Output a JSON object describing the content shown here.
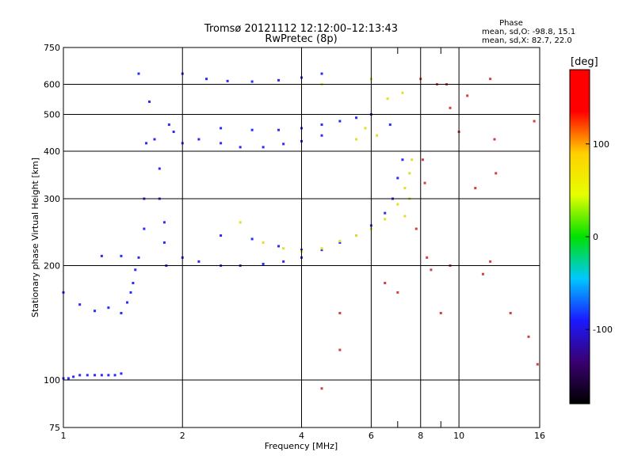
{
  "chart_data": {
    "type": "scatter",
    "title": "Tromsø 20121112 12:12:00–12:13:43",
    "subtitle": "RwPretec (8p)",
    "stats": {
      "heading": "Phase",
      "line_o": "mean, sd,O: -98.8, 15.1",
      "line_x": "mean, sd,X: 82.7, 22.0"
    },
    "xlabel": "Frequency [MHz]",
    "ylabel": "Stationary phase Virtual Height [km]",
    "x_scale": "log",
    "y_scale": "log",
    "xlim": [
      1,
      16
    ],
    "ylim": [
      75,
      750
    ],
    "xticks": [
      1,
      2,
      4,
      6,
      8,
      10,
      16
    ],
    "xticks_minor": [
      7,
      9
    ],
    "yticks": [
      75,
      100,
      200,
      300,
      400,
      500,
      600,
      750
    ],
    "grid": true,
    "colorbar": {
      "label": "[deg]",
      "range": [
        -180,
        180
      ],
      "ticks": [
        100,
        0,
        -100
      ],
      "colormap": [
        "#000000",
        "#3a0070",
        "#1a1aff",
        "#00c8ff",
        "#00e000",
        "#e6ff00",
        "#ffd000",
        "#ff0000",
        "#ff0000"
      ]
    },
    "series": [
      {
        "points": [
          [
            1.0,
            101
          ],
          [
            1.03,
            101
          ],
          [
            1.06,
            102
          ],
          [
            1.1,
            103
          ],
          [
            1.15,
            103
          ],
          [
            1.2,
            103
          ],
          [
            1.25,
            103
          ],
          [
            1.3,
            103
          ],
          [
            1.35,
            103
          ],
          [
            1.4,
            104
          ],
          [
            1.0,
            170
          ],
          [
            1.1,
            158
          ],
          [
            1.2,
            152
          ],
          [
            1.3,
            155
          ],
          [
            1.4,
            150
          ],
          [
            1.45,
            160
          ],
          [
            1.48,
            170
          ],
          [
            1.5,
            180
          ],
          [
            1.52,
            195
          ],
          [
            1.25,
            212
          ],
          [
            1.4,
            212
          ],
          [
            1.55,
            210
          ],
          [
            1.6,
            250
          ],
          [
            1.6,
            300
          ],
          [
            1.62,
            420
          ],
          [
            1.55,
            640
          ],
          [
            1.65,
            540
          ],
          [
            1.7,
            430
          ],
          [
            1.75,
            360
          ],
          [
            1.75,
            300
          ],
          [
            1.8,
            260
          ],
          [
            1.8,
            230
          ],
          [
            1.82,
            200
          ],
          [
            1.85,
            470
          ],
          [
            1.9,
            450
          ],
          [
            2.0,
            420
          ],
          [
            2.0,
            210
          ],
          [
            2.2,
            205
          ],
          [
            2.5,
            200
          ],
          [
            2.8,
            200
          ],
          [
            3.2,
            202
          ],
          [
            3.6,
            205
          ],
          [
            4.0,
            210
          ],
          [
            4.5,
            220
          ],
          [
            5.0,
            230
          ],
          [
            5.5,
            240
          ],
          [
            6.0,
            255
          ],
          [
            6.5,
            275
          ],
          [
            6.8,
            300
          ],
          [
            7.0,
            340
          ],
          [
            7.2,
            380
          ],
          [
            6.7,
            470
          ],
          [
            2.2,
            430
          ],
          [
            2.5,
            420
          ],
          [
            2.8,
            410
          ],
          [
            3.2,
            410
          ],
          [
            3.6,
            418
          ],
          [
            4.0,
            425
          ],
          [
            4.5,
            440
          ],
          [
            2.5,
            460
          ],
          [
            3.0,
            455
          ],
          [
            3.5,
            455
          ],
          [
            4.0,
            460
          ],
          [
            4.5,
            470
          ],
          [
            5.0,
            480
          ],
          [
            5.5,
            490
          ],
          [
            6.0,
            500
          ],
          [
            2.0,
            640
          ],
          [
            2.3,
            620
          ],
          [
            2.6,
            612
          ],
          [
            3.0,
            610
          ],
          [
            3.5,
            615
          ],
          [
            4.0,
            625
          ],
          [
            4.5,
            640
          ],
          [
            2.5,
            240
          ],
          [
            3.0,
            235
          ],
          [
            3.5,
            225
          ],
          [
            4.0,
            220
          ]
        ]
      },
      {
        "points": [
          [
            3.2,
            230
          ],
          [
            3.6,
            222
          ],
          [
            4.0,
            218
          ],
          [
            4.5,
            222
          ],
          [
            5.0,
            232
          ],
          [
            5.5,
            240
          ],
          [
            6.0,
            250
          ],
          [
            6.5,
            265
          ],
          [
            7.0,
            290
          ],
          [
            7.3,
            320
          ],
          [
            7.5,
            350
          ],
          [
            7.6,
            380
          ],
          [
            7.5,
            300
          ],
          [
            7.3,
            270
          ],
          [
            6.2,
            440
          ],
          [
            6.0,
            620
          ],
          [
            6.6,
            550
          ],
          [
            7.2,
            570
          ],
          [
            2.8,
            260
          ],
          [
            4.5,
            600
          ],
          [
            5.5,
            430
          ],
          [
            5.8,
            460
          ]
        ]
      },
      {
        "points": [
          [
            8.0,
            620
          ],
          [
            8.1,
            380
          ],
          [
            8.3,
            210
          ],
          [
            8.8,
            600
          ],
          [
            9.3,
            600
          ],
          [
            9.5,
            520
          ],
          [
            10.0,
            450
          ],
          [
            11.0,
            320
          ],
          [
            12.0,
            620
          ],
          [
            12.3,
            430
          ],
          [
            12.4,
            350
          ],
          [
            13.5,
            150
          ],
          [
            15.0,
            130
          ],
          [
            15.5,
            480
          ],
          [
            15.8,
            110
          ],
          [
            10.5,
            560
          ],
          [
            12.0,
            205
          ],
          [
            11.5,
            190
          ],
          [
            9.0,
            150
          ],
          [
            6.5,
            180
          ],
          [
            7.0,
            170
          ],
          [
            5.0,
            120
          ],
          [
            4.5,
            95
          ],
          [
            5.0,
            150
          ],
          [
            8.5,
            195
          ],
          [
            9.5,
            200
          ],
          [
            7.8,
            250
          ],
          [
            8.2,
            330
          ]
        ]
      }
    ]
  }
}
